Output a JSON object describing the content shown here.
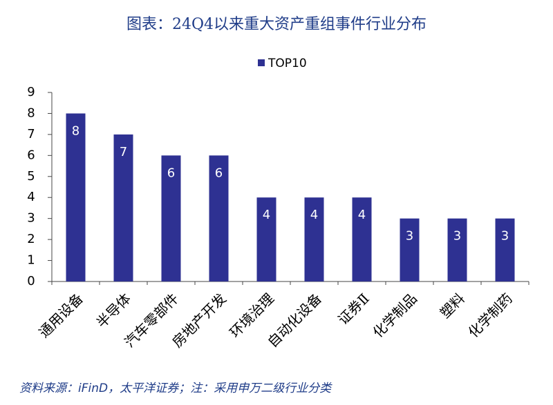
{
  "chart_data": {
    "type": "bar",
    "title": "图表：24Q4以来重大资产重组事件行业分布",
    "categories": [
      "通用设备",
      "半导体",
      "汽车零部件",
      "房地产开发",
      "环境治理",
      "自动化设备",
      "证券Ⅱ",
      "化学制品",
      "塑料",
      "化学制药"
    ],
    "series": [
      {
        "name": "TOP10",
        "color": "#2e3192",
        "values": [
          8,
          7,
          6,
          6,
          4,
          4,
          4,
          3,
          3,
          3
        ]
      }
    ],
    "ylim": [
      0,
      9
    ],
    "yticks": [
      0,
      1,
      2,
      3,
      4,
      5,
      6,
      7,
      8,
      9
    ],
    "grid": false,
    "legend": "top",
    "source": "资料来源：iFinD，太平洋证券；注：采用申万二级行业分类"
  }
}
